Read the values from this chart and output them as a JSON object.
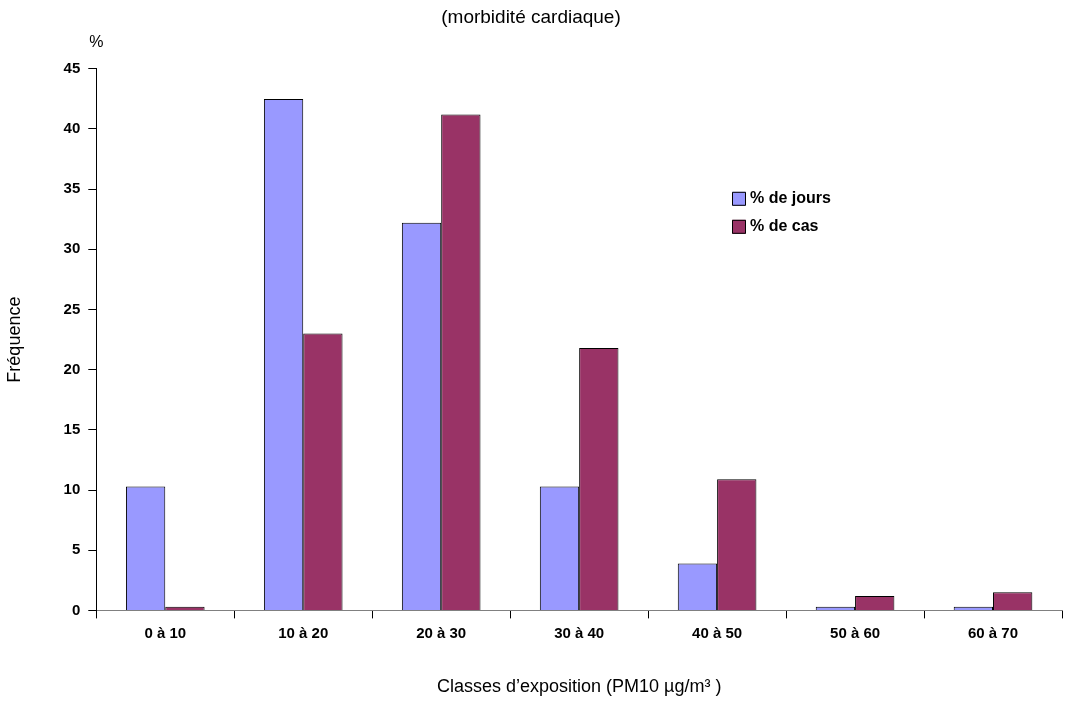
{
  "chart_data": {
    "type": "bar",
    "title": "(morbidité cardiaque)",
    "ylabel": "Fréquence",
    "xlabel": "Classes d’exposition (PM10 µg/m³ )",
    "annotations": [
      "%"
    ],
    "categories": [
      "0 à 10",
      "10 à 20",
      "20 à 30",
      "30 à 40",
      "40 à 50",
      "50 à 60",
      "60 à 70"
    ],
    "series": [
      {
        "name": "% de jours",
        "color": "#9999ff",
        "values": [
          10.3,
          42.5,
          32.2,
          10.3,
          3.9,
          0.3,
          0.3
        ]
      },
      {
        "name": "% de cas",
        "color": "#993366",
        "values": [
          0.3,
          23,
          41.2,
          21.8,
          10.9,
          1.2,
          1.5
        ]
      }
    ],
    "ylim": [
      0,
      45
    ],
    "yticks": [
      0,
      5,
      10,
      15,
      20,
      25,
      30,
      35,
      40,
      45
    ],
    "grid": false,
    "legend": "top right"
  }
}
